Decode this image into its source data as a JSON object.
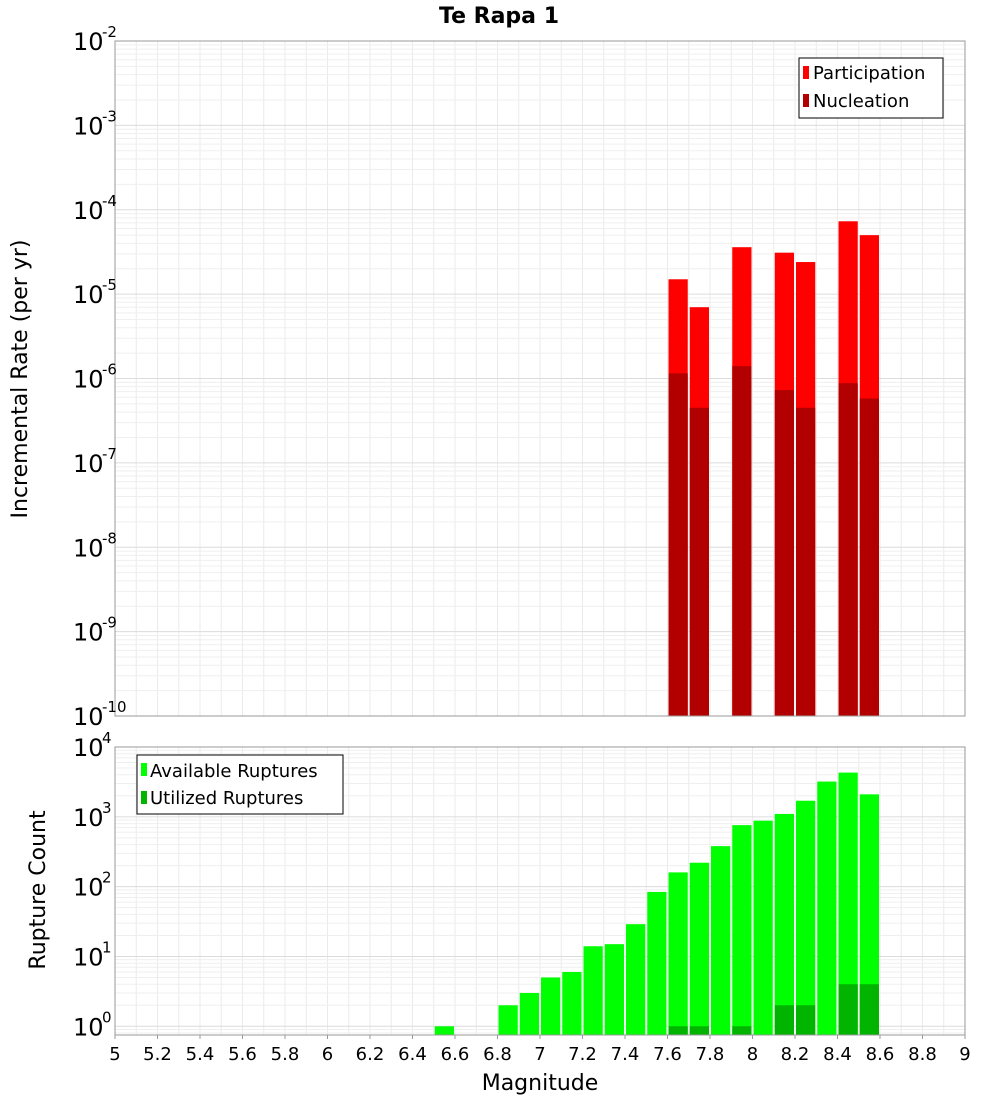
{
  "chart_data": [
    {
      "type": "bar",
      "title": "Te Rapa 1",
      "ylabel": "Incremental Rate (per yr)",
      "xlabel": "",
      "yscale": "log",
      "xlim": [
        5,
        9
      ],
      "ylim": [
        1e-10,
        0.01
      ],
      "ytick_exponents": [
        -10,
        -9,
        -8,
        -7,
        -6,
        -5,
        -4,
        -3,
        -2
      ],
      "grid": true,
      "legend_position": "top-right",
      "bar_width": 0.1,
      "overlay": true,
      "series": [
        {
          "name": "Participation",
          "color": "#ff0000",
          "points": [
            {
              "x": 7.65,
              "y": 1.5e-05
            },
            {
              "x": 7.75,
              "y": 7e-06
            },
            {
              "x": 7.95,
              "y": 3.6e-05
            },
            {
              "x": 8.15,
              "y": 3.1e-05
            },
            {
              "x": 8.25,
              "y": 2.4e-05
            },
            {
              "x": 8.45,
              "y": 7.3e-05
            },
            {
              "x": 8.55,
              "y": 5e-05
            }
          ]
        },
        {
          "name": "Nucleation",
          "color": "#b20000",
          "points": [
            {
              "x": 7.65,
              "y": 1.15e-06
            },
            {
              "x": 7.75,
              "y": 4.5e-07
            },
            {
              "x": 7.95,
              "y": 1.4e-06
            },
            {
              "x": 8.15,
              "y": 7.3e-07
            },
            {
              "x": 8.25,
              "y": 4.5e-07
            },
            {
              "x": 8.45,
              "y": 8.8e-07
            },
            {
              "x": 8.55,
              "y": 5.8e-07
            }
          ]
        }
      ]
    },
    {
      "type": "bar",
      "title": "",
      "ylabel": "Rupture Count",
      "xlabel": "Magnitude",
      "yscale": "log",
      "xlim": [
        5,
        9
      ],
      "ylim": [
        0.75,
        10000
      ],
      "ytick_exponents": [
        0,
        1,
        2,
        3,
        4
      ],
      "x_ticks": [
        "5",
        "5.2",
        "5.4",
        "5.6",
        "5.8",
        "6",
        "6.2",
        "6.4",
        "6.6",
        "6.8",
        "7",
        "7.2",
        "7.4",
        "7.6",
        "7.8",
        "8",
        "8.2",
        "8.4",
        "8.6",
        "8.8",
        "9"
      ],
      "grid": true,
      "legend_position": "top-left",
      "bar_width": 0.1,
      "overlay": true,
      "series": [
        {
          "name": "Available Ruptures",
          "color": "#00ff00",
          "points": [
            {
              "x": 6.55,
              "y": 1
            },
            {
              "x": 6.85,
              "y": 2
            },
            {
              "x": 6.95,
              "y": 3
            },
            {
              "x": 7.05,
              "y": 5
            },
            {
              "x": 7.15,
              "y": 6
            },
            {
              "x": 7.25,
              "y": 14
            },
            {
              "x": 7.35,
              "y": 15
            },
            {
              "x": 7.45,
              "y": 29
            },
            {
              "x": 7.55,
              "y": 84
            },
            {
              "x": 7.65,
              "y": 160
            },
            {
              "x": 7.75,
              "y": 220
            },
            {
              "x": 7.85,
              "y": 380
            },
            {
              "x": 7.95,
              "y": 760
            },
            {
              "x": 8.05,
              "y": 880
            },
            {
              "x": 8.15,
              "y": 1100
            },
            {
              "x": 8.25,
              "y": 1700
            },
            {
              "x": 8.35,
              "y": 3200
            },
            {
              "x": 8.45,
              "y": 4300
            },
            {
              "x": 8.55,
              "y": 2100
            }
          ]
        },
        {
          "name": "Utilized Ruptures",
          "color": "#00b400",
          "points": [
            {
              "x": 7.65,
              "y": 1
            },
            {
              "x": 7.75,
              "y": 1
            },
            {
              "x": 7.95,
              "y": 1
            },
            {
              "x": 8.15,
              "y": 2
            },
            {
              "x": 8.25,
              "y": 2
            },
            {
              "x": 8.45,
              "y": 4
            },
            {
              "x": 8.55,
              "y": 4
            }
          ]
        }
      ]
    }
  ]
}
